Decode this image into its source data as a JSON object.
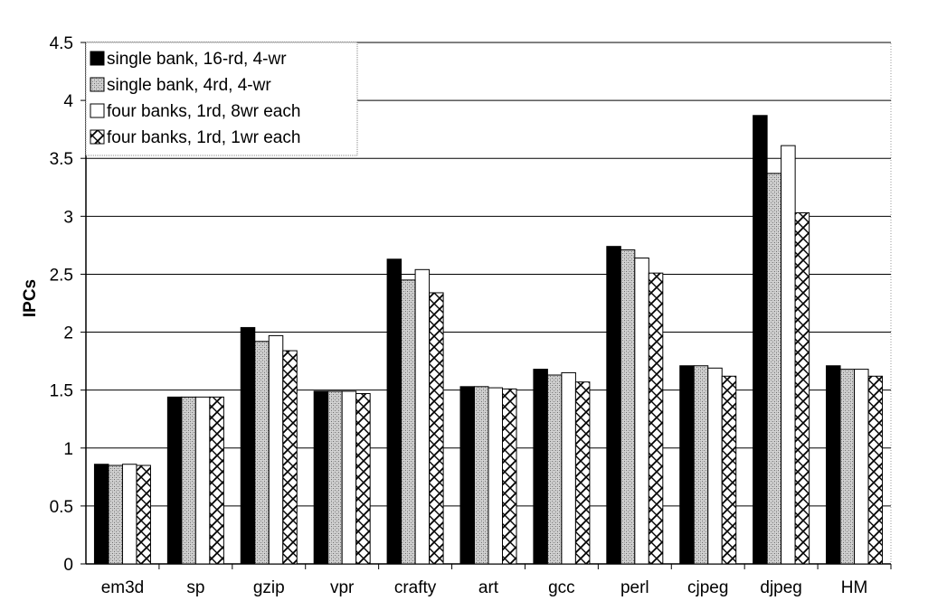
{
  "chart_data": {
    "type": "bar",
    "title": "",
    "xlabel": "",
    "ylabel": "IPCs",
    "ylim": [
      0,
      4.5
    ],
    "yticks": [
      "0",
      "0.5",
      "1",
      "1.5",
      "2",
      "2.5",
      "3",
      "3.5",
      "4",
      "4.5"
    ],
    "ytick_values": [
      0,
      0.5,
      1,
      1.5,
      2,
      2.5,
      3,
      3.5,
      4,
      4.5
    ],
    "grid": true,
    "legend_position": "top-left",
    "categories": [
      "em3d",
      "sp",
      "gzip",
      "vpr",
      "crafty",
      "art",
      "gcc",
      "perl",
      "cjpeg",
      "djpeg",
      "HM"
    ],
    "series": [
      {
        "name": "single bank, 16-rd, 4-wr",
        "pattern": "solid-black",
        "values": [
          0.86,
          1.44,
          2.04,
          1.49,
          2.63,
          1.53,
          1.68,
          2.74,
          1.71,
          3.87,
          1.71
        ]
      },
      {
        "name": "single bank, 4rd, 4-wr",
        "pattern": "gray-stipple",
        "values": [
          0.85,
          1.44,
          1.92,
          1.49,
          2.45,
          1.53,
          1.63,
          2.71,
          1.71,
          3.37,
          1.68
        ]
      },
      {
        "name": "four banks, 1rd, 8wr each",
        "pattern": "white",
        "values": [
          0.86,
          1.44,
          1.97,
          1.49,
          2.54,
          1.52,
          1.65,
          2.64,
          1.69,
          3.61,
          1.68
        ]
      },
      {
        "name": "four banks, 1rd, 1wr each",
        "pattern": "crosshatch",
        "values": [
          0.85,
          1.44,
          1.84,
          1.47,
          2.34,
          1.51,
          1.57,
          2.51,
          1.62,
          3.03,
          1.62
        ]
      }
    ]
  }
}
